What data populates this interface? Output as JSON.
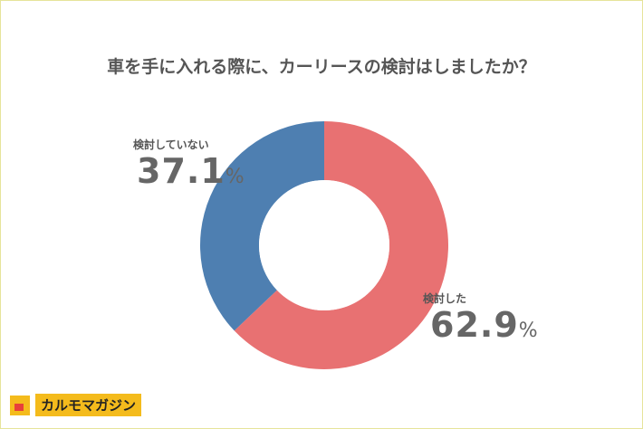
{
  "chart_data": {
    "type": "pie",
    "donut": true,
    "title": "車を手に入れる際に、カーリースの検討はしましたか？",
    "categories": [
      "検討した",
      "検討していない"
    ],
    "values": [
      62.9,
      37.1
    ],
    "unit": "%",
    "colors": [
      "#e87172",
      "#4e7fb1"
    ],
    "legend": "none"
  },
  "logo": {
    "text": "カルモマガジン"
  }
}
